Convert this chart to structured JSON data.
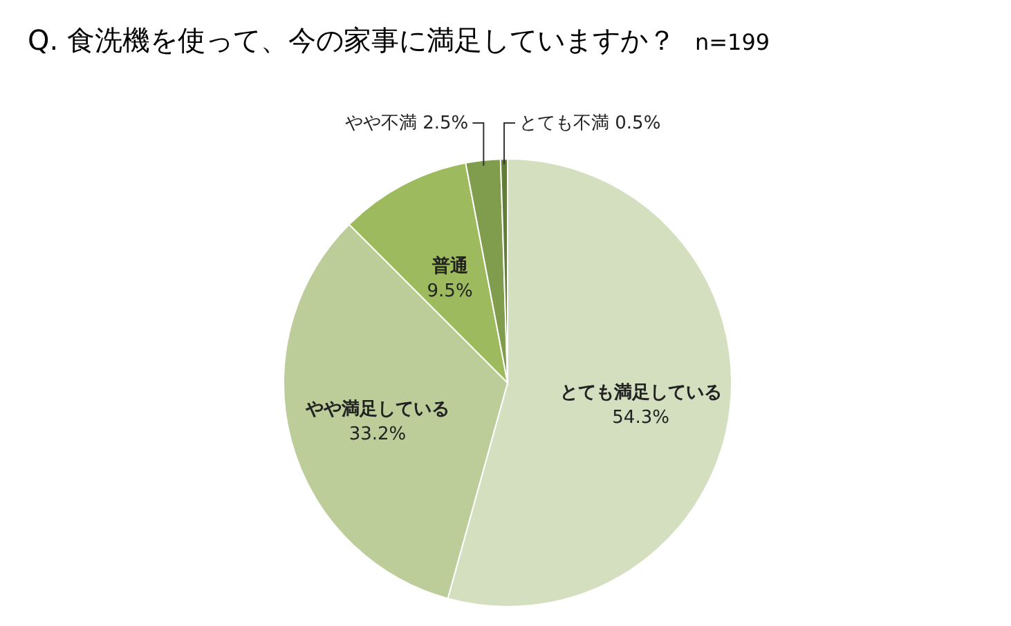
{
  "chart_data": {
    "type": "pie",
    "title": "Q. 食洗機を使って、今の家事に満足していますか？",
    "subtitle": "n=199",
    "categories": [
      "とても満足している",
      "やや満足している",
      "普通",
      "やや不満",
      "とても不満"
    ],
    "values": [
      54.3,
      33.2,
      9.5,
      2.5,
      0.5
    ],
    "value_labels": [
      "54.3%",
      "33.2%",
      "9.5%",
      "2.5%",
      "0.5%"
    ],
    "colors": [
      "#d3dfbf",
      "#bccd99",
      "#9dbb5e",
      "#7f9d4c",
      "#607d3a"
    ]
  }
}
